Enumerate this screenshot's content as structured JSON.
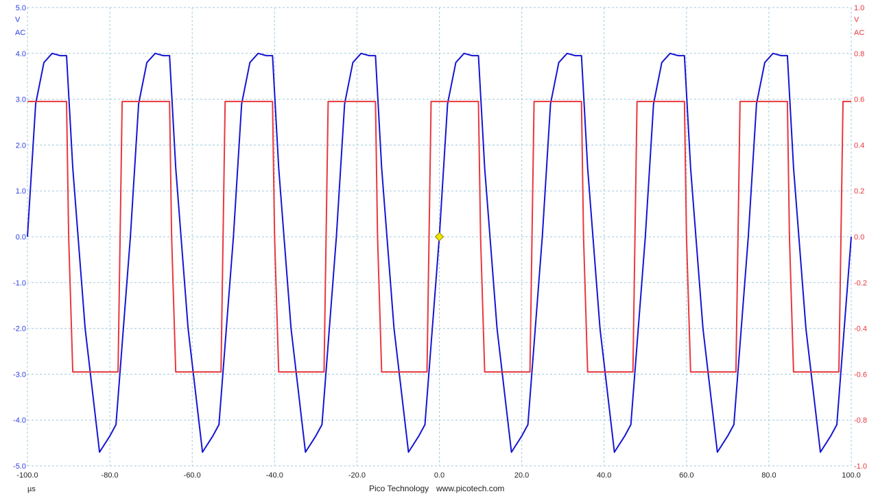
{
  "footer": {
    "brand": "Pico Technology",
    "url": "www.picotech.com"
  },
  "chart_data": {
    "type": "line",
    "xunit": "µs",
    "xlim": [
      -100,
      100
    ],
    "xticks": [
      "-100.0",
      "-80.0",
      "-60.0",
      "-40.0",
      "-20.0",
      "0.0",
      "20.0",
      "40.0",
      "60.0",
      "80.0",
      "100.0"
    ],
    "grid": true,
    "axes": [
      {
        "side": "left",
        "color": "#2b3fe0",
        "unit": "V",
        "coupling": "AC",
        "ylim": [
          -5,
          5
        ],
        "ticks": [
          "5.0",
          "4.0",
          "3.0",
          "2.0",
          "1.0",
          "0.0",
          "-1.0",
          "-2.0",
          "-3.0",
          "-4.0",
          "-5.0"
        ]
      },
      {
        "side": "right",
        "color": "#e8373d",
        "unit": "V",
        "coupling": "AC",
        "ylim": [
          -1,
          1
        ],
        "ticks": [
          "1.0",
          "0.8",
          "0.6",
          "0.4",
          "0.2",
          "0.0",
          "-0.2",
          "-0.4",
          "-0.6",
          "-0.8",
          "-1.0"
        ]
      }
    ],
    "series": [
      {
        "axis": "left",
        "color": "#1414d2",
        "waveform": "rounded square wave",
        "period_us": 25,
        "high_v": 4.0,
        "low_v": -4.7,
        "x_sample_us": [
          -100,
          -98,
          -96,
          -94,
          -92,
          -90.5,
          -89,
          -86,
          -82.5,
          -80,
          -78.5,
          -75,
          -73,
          -71,
          -69,
          -66,
          -65.5,
          -64,
          -61,
          -57.5
        ],
        "y_sample_v": [
          0.0,
          2.9,
          3.8,
          4.0,
          3.95,
          3.95,
          1.5,
          -2.0,
          -4.7,
          -4.35,
          -4.1,
          0.5,
          3.1,
          3.9,
          4.0,
          4.0,
          3.0,
          1.0,
          -2.2,
          -4.7
        ]
      },
      {
        "axis": "right",
        "color": "#e8373d",
        "waveform": "square wave",
        "period_us": 25,
        "high_v": 0.59,
        "low_v": -0.59,
        "x_sample_us": [
          -100,
          -90.5,
          -90,
          -89,
          -78,
          -77.5,
          -77,
          -65.5,
          -65,
          -64,
          -53
        ],
        "y_sample_v": [
          0.59,
          0.59,
          0.0,
          -0.59,
          -0.59,
          0.0,
          0.59,
          0.59,
          0.0,
          -0.59,
          -0.59
        ]
      }
    ],
    "trigger": {
      "x": 0.0,
      "y": 0.0,
      "color": "#f2e600"
    }
  }
}
